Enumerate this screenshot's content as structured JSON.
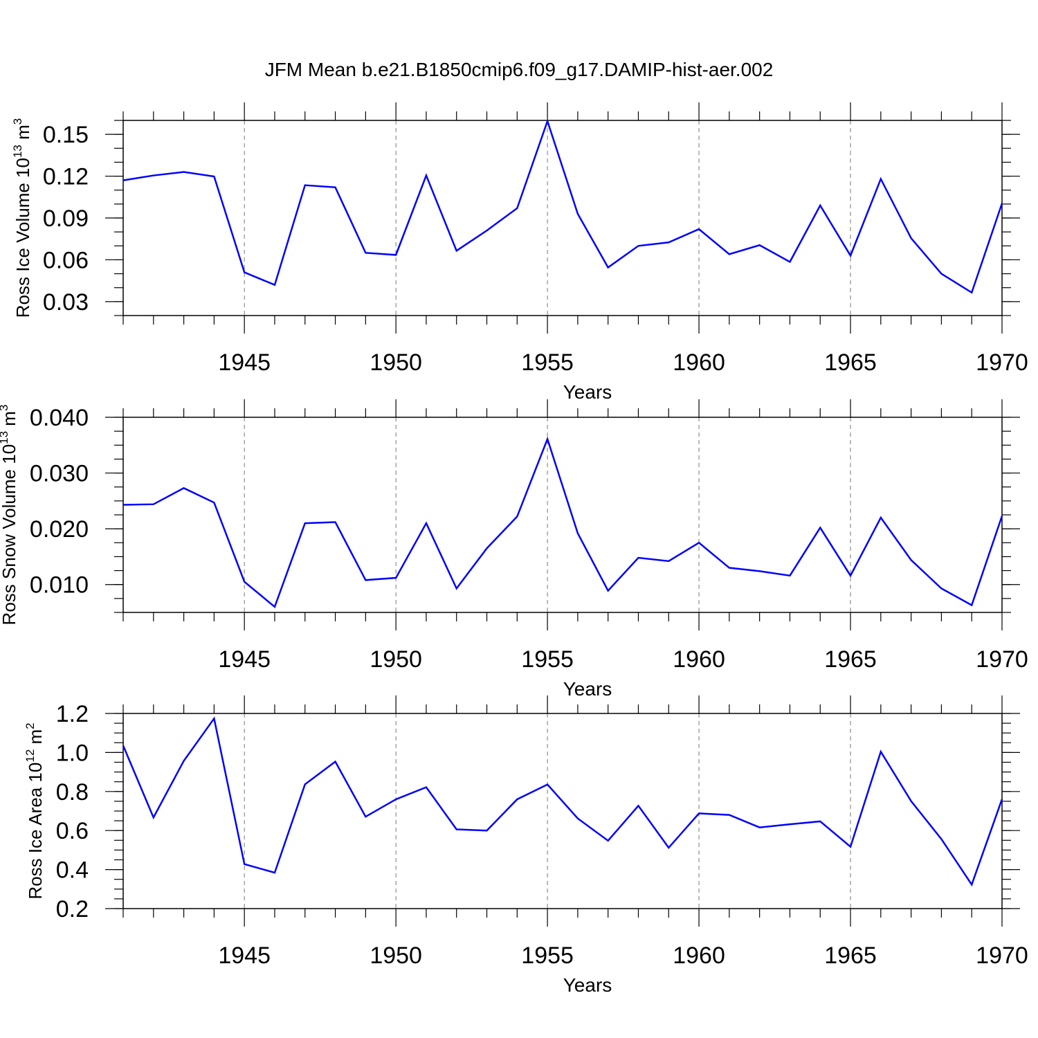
{
  "title": "JFM Mean b.e21.B1850cmip6.f09_g17.DAMIP-hist-aer.002",
  "line_color": "#0000ff",
  "chart_data": [
    {
      "type": "line",
      "xlabel": "Years",
      "ylabel": {
        "prefix": "Ross Ice Volume 10",
        "exp": "13",
        "unit": " m",
        "unit_exp": "3"
      },
      "xlim": [
        1941,
        1970
      ],
      "ylim": [
        0.02,
        0.16
      ],
      "x_ticks": [
        "1945",
        "1950",
        "1955",
        "1960",
        "1965",
        "1970"
      ],
      "y_ticks": [
        "0.03",
        "0.06",
        "0.09",
        "0.12",
        "0.15"
      ],
      "x": [
        1941,
        1942,
        1943,
        1944,
        1945,
        1946,
        1947,
        1948,
        1949,
        1950,
        1951,
        1952,
        1953,
        1954,
        1955,
        1956,
        1957,
        1958,
        1959,
        1960,
        1961,
        1962,
        1963,
        1964,
        1965,
        1966,
        1967,
        1968,
        1969,
        1970
      ],
      "values": [
        0.117,
        0.1205,
        0.123,
        0.1198,
        0.051,
        0.042,
        0.1135,
        0.112,
        0.065,
        0.0635,
        0.1205,
        0.0665,
        0.081,
        0.097,
        0.1595,
        0.093,
        0.0545,
        0.07,
        0.0725,
        0.082,
        0.064,
        0.0705,
        0.0585,
        0.099,
        0.063,
        0.118,
        0.0755,
        0.05,
        0.0365,
        0.1005
      ]
    },
    {
      "type": "line",
      "xlabel": "Years",
      "ylabel": {
        "prefix": "Ross Snow Volume 10",
        "exp": "13",
        "unit": " m",
        "unit_exp": "3"
      },
      "xlim": [
        1941,
        1970
      ],
      "ylim": [
        0.005,
        0.04
      ],
      "x_ticks": [
        "1945",
        "1950",
        "1955",
        "1960",
        "1965",
        "1970"
      ],
      "y_ticks": [
        "0.010",
        "0.020",
        "0.030",
        "0.040"
      ],
      "x": [
        1941,
        1942,
        1943,
        1944,
        1945,
        1946,
        1947,
        1948,
        1949,
        1950,
        1951,
        1952,
        1953,
        1954,
        1955,
        1956,
        1957,
        1958,
        1959,
        1960,
        1961,
        1962,
        1963,
        1964,
        1965,
        1966,
        1967,
        1968,
        1969,
        1970
      ],
      "values": [
        0.0243,
        0.0244,
        0.0273,
        0.0247,
        0.0105,
        0.006,
        0.021,
        0.0212,
        0.0108,
        0.0112,
        0.021,
        0.0093,
        0.0165,
        0.0222,
        0.0361,
        0.0192,
        0.0089,
        0.0148,
        0.0142,
        0.0175,
        0.013,
        0.0124,
        0.0116,
        0.0202,
        0.0116,
        0.022,
        0.0144,
        0.0093,
        0.0063,
        0.0223
      ]
    },
    {
      "type": "line",
      "xlabel": "Years",
      "ylabel": {
        "prefix": "Ross Ice Area 10",
        "exp": "12",
        "unit": " m",
        "unit_exp": "2"
      },
      "xlim": [
        1941,
        1970
      ],
      "ylim": [
        0.2,
        1.2
      ],
      "x_ticks": [
        "1945",
        "1950",
        "1955",
        "1960",
        "1965",
        "1970"
      ],
      "y_ticks": [
        "0.2",
        "0.4",
        "0.6",
        "0.8",
        "1.0",
        "1.2"
      ],
      "x": [
        1941,
        1942,
        1943,
        1944,
        1945,
        1946,
        1947,
        1948,
        1949,
        1950,
        1951,
        1952,
        1953,
        1954,
        1955,
        1956,
        1957,
        1958,
        1959,
        1960,
        1961,
        1962,
        1963,
        1964,
        1965,
        1966,
        1967,
        1968,
        1969,
        1970
      ],
      "values": [
        1.035,
        0.667,
        0.957,
        1.174,
        0.428,
        0.384,
        0.837,
        0.953,
        0.671,
        0.76,
        0.822,
        0.606,
        0.6,
        0.76,
        0.836,
        0.662,
        0.548,
        0.727,
        0.512,
        0.688,
        0.68,
        0.616,
        0.632,
        0.647,
        0.517,
        1.004,
        0.751,
        0.556,
        0.323,
        0.761
      ]
    }
  ]
}
